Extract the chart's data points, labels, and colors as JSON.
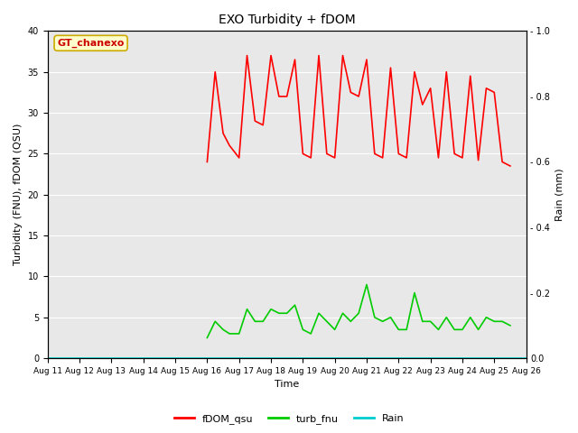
{
  "title": "EXO Turbidity + fDOM",
  "xlabel": "Time",
  "ylabel_left": "Turbidity (FNU), fDOM (QSU)",
  "ylabel_right": "Rain (mm)",
  "annotation": "GT_chanexo",
  "ylim_left": [
    0,
    40
  ],
  "ylim_right": [
    0,
    1.0
  ],
  "bg_color": "#e8e8e8",
  "legend_entries": [
    "fDOM_qsu",
    "turb_fnu",
    "Rain"
  ],
  "legend_colors": [
    "#ff0000",
    "#00cc00",
    "#00cccc"
  ],
  "fdom_color": "#ff0000",
  "turb_color": "#00cc00",
  "rain_color": "#00cccc",
  "fdom_data_x": [
    16.0,
    16.25,
    16.5,
    16.7,
    17.0,
    17.25,
    17.5,
    17.75,
    18.0,
    18.25,
    18.5,
    18.75,
    19.0,
    19.25,
    19.5,
    19.75,
    20.0,
    20.25,
    20.5,
    20.75,
    21.0,
    21.25,
    21.5,
    21.75,
    22.0,
    22.25,
    22.5,
    22.75,
    23.0,
    23.25,
    23.5,
    23.75,
    24.0,
    24.25,
    24.5,
    24.75,
    25.0,
    25.25,
    25.5
  ],
  "fdom_data_y": [
    24.0,
    35.0,
    27.5,
    26.0,
    24.5,
    37.0,
    29.0,
    28.5,
    37.0,
    32.0,
    32.0,
    36.5,
    25.0,
    24.5,
    37.0,
    25.0,
    24.5,
    37.0,
    32.5,
    32.0,
    36.5,
    25.0,
    24.5,
    35.5,
    25.0,
    24.5,
    35.0,
    31.0,
    33.0,
    24.5,
    35.0,
    25.0,
    24.5,
    34.5,
    24.2,
    33.0,
    32.5,
    24.0,
    23.5
  ],
  "turb_data_x": [
    16.0,
    16.25,
    16.5,
    16.7,
    17.0,
    17.25,
    17.5,
    17.75,
    18.0,
    18.25,
    18.5,
    18.75,
    19.0,
    19.25,
    19.5,
    19.75,
    20.0,
    20.25,
    20.5,
    20.75,
    21.0,
    21.25,
    21.5,
    21.75,
    22.0,
    22.25,
    22.5,
    22.75,
    23.0,
    23.25,
    23.5,
    23.75,
    24.0,
    24.25,
    24.5,
    24.75,
    25.0,
    25.25,
    25.5
  ],
  "turb_data_y": [
    2.5,
    4.5,
    3.5,
    3.0,
    3.0,
    6.0,
    4.5,
    4.5,
    6.0,
    5.5,
    5.5,
    6.5,
    3.5,
    3.0,
    5.5,
    4.5,
    3.5,
    5.5,
    4.5,
    5.5,
    9.0,
    5.0,
    4.5,
    5.0,
    3.5,
    3.5,
    8.0,
    4.5,
    4.5,
    3.5,
    5.0,
    3.5,
    3.5,
    5.0,
    3.5,
    5.0,
    4.5,
    4.5,
    4.0
  ],
  "rain_data_x": [
    11,
    12,
    13,
    14,
    15,
    16,
    17,
    18,
    19,
    20,
    21,
    22,
    23,
    24,
    25,
    26
  ],
  "rain_data_y": [
    0,
    0,
    0,
    0,
    0,
    0,
    0,
    0,
    0,
    0,
    0,
    0,
    0,
    0,
    0,
    0
  ],
  "xtick_labels": [
    "Aug 11",
    "Aug 12",
    "Aug 13",
    "Aug 14",
    "Aug 15",
    "Aug 16",
    "Aug 17",
    "Aug 18",
    "Aug 19",
    "Aug 20",
    "Aug 21",
    "Aug 22",
    "Aug 23",
    "Aug 24",
    "Aug 25",
    "Aug 26"
  ],
  "xtick_positions": [
    11,
    12,
    13,
    14,
    15,
    16,
    17,
    18,
    19,
    20,
    21,
    22,
    23,
    24,
    25,
    26
  ],
  "yticks_left": [
    0,
    5,
    10,
    15,
    20,
    25,
    30,
    35,
    40
  ],
  "yticks_right": [
    0.0,
    0.2,
    0.4,
    0.6,
    0.8,
    1.0
  ],
  "ytick_right_labels": [
    "0.0",
    "0.2",
    "0.4",
    "0.6",
    "0.8",
    "1.0"
  ]
}
